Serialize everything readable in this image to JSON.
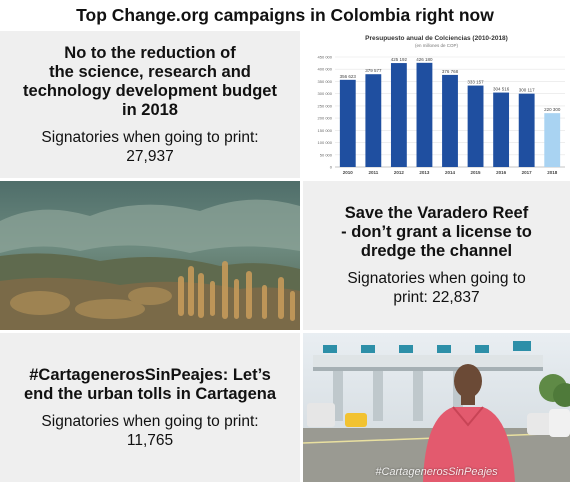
{
  "page": {
    "title": "Top Change.org campaigns in Colombia right now"
  },
  "campaigns": [
    {
      "headline": "No to the reduction of the science, research and technology development budget in 2018",
      "headline_lines": [
        "No to the reduction of",
        "the science, research and",
        "technology development budget",
        "in 2018"
      ],
      "signatories_label": "Signatories when going to print:",
      "signatories_value": "27,937"
    },
    {
      "headline_lines": [
        "Save the Varadero Reef",
        "- don’t grant a license to",
        "dredge the channel"
      ],
      "signatories_lines": [
        "Signatories when going to",
        "print: 22,837"
      ]
    },
    {
      "headline_lines": [
        "#CartagenerosSinPeajes: Let’s",
        "end the urban tolls in Cartagena"
      ],
      "signatories_label": "Signatories when going to print:",
      "signatories_value": "11,765"
    }
  ],
  "tolls_image": {
    "hashtag": "#CartagenerosSinPeajes"
  },
  "colors": {
    "bar": "#1f4fa0",
    "bar_highlight": "#a9d3f2",
    "panel_bg": "#efefef"
  },
  "chart_data": {
    "type": "bar",
    "title": "Presupuesto anual de Colciencias (2010-2018)",
    "subtitle": "(en millones de COP)",
    "categories": [
      "2010",
      "2011",
      "2012",
      "2013",
      "2014",
      "2015",
      "2016",
      "2017",
      "2018"
    ],
    "values": [
      356623,
      379577,
      425192,
      426180,
      376768,
      333157,
      304516,
      300117,
      220300
    ],
    "value_labels": [
      "356 623",
      "379 577",
      "425 192",
      "426 180",
      "376 768",
      "333 157",
      "304 516",
      "300 117",
      "220 300"
    ],
    "yticks": [
      "0",
      "50 000",
      "100 000",
      "150 000",
      "200 000",
      "250 000",
      "300 000",
      "350 000",
      "400 000",
      "450 000"
    ],
    "ylim": [
      0,
      450000
    ],
    "highlight_index": 8,
    "grid": true
  }
}
